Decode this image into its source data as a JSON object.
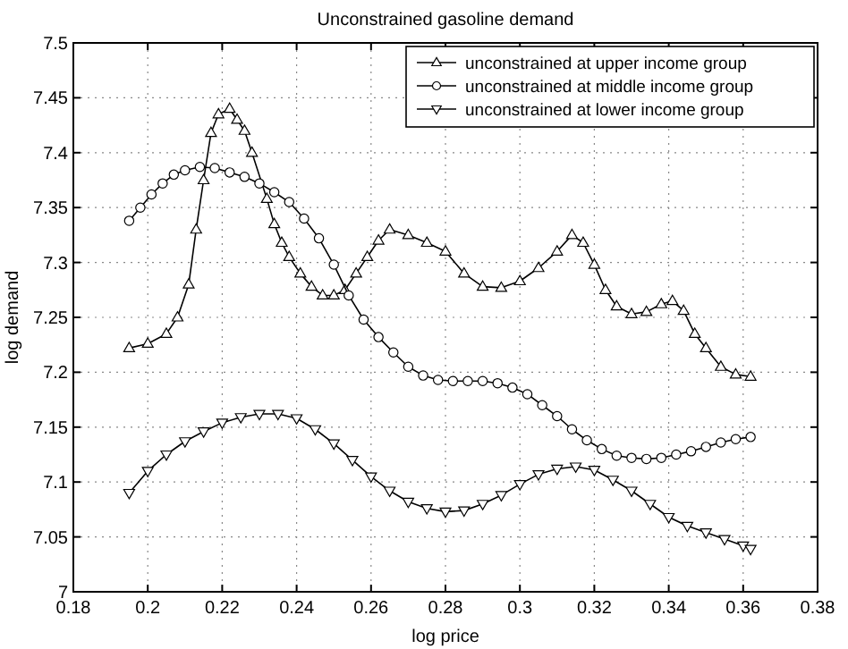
{
  "chart_data": {
    "type": "line",
    "title": "Unconstrained gasoline demand",
    "xlabel": "log price",
    "ylabel": "log demand",
    "xlim": [
      0.18,
      0.38
    ],
    "xticks": [
      0.18,
      0.2,
      0.22,
      0.24,
      0.26,
      0.28,
      0.3,
      0.32,
      0.34,
      0.36,
      0.38
    ],
    "ylim": [
      7,
      7.5
    ],
    "yticks": [
      7,
      7.05,
      7.1,
      7.15,
      7.2,
      7.25,
      7.3,
      7.35,
      7.4,
      7.45,
      7.5
    ],
    "grid": true,
    "legend": "top right",
    "line_style": "solid",
    "series": [
      {
        "name": "unconstrained at upper income group",
        "color": "#000000",
        "marker": "triangle",
        "x": [
          0.195,
          0.2,
          0.205,
          0.208,
          0.211,
          0.213,
          0.215,
          0.217,
          0.219,
          0.222,
          0.224,
          0.226,
          0.228,
          0.232,
          0.234,
          0.236,
          0.238,
          0.241,
          0.244,
          0.247,
          0.25,
          0.253,
          0.256,
          0.259,
          0.262,
          0.265,
          0.27,
          0.275,
          0.28,
          0.285,
          0.29,
          0.295,
          0.3,
          0.305,
          0.31,
          0.314,
          0.317,
          0.32,
          0.323,
          0.326,
          0.33,
          0.334,
          0.338,
          0.341,
          0.344,
          0.347,
          0.35,
          0.354,
          0.358,
          0.362
        ],
        "values": [
          7.222,
          7.226,
          7.235,
          7.25,
          7.28,
          7.33,
          7.375,
          7.418,
          7.435,
          7.44,
          7.43,
          7.42,
          7.4,
          7.358,
          7.335,
          7.318,
          7.305,
          7.29,
          7.278,
          7.27,
          7.27,
          7.275,
          7.29,
          7.305,
          7.32,
          7.33,
          7.325,
          7.318,
          7.31,
          7.29,
          7.278,
          7.277,
          7.283,
          7.295,
          7.31,
          7.325,
          7.318,
          7.298,
          7.275,
          7.26,
          7.253,
          7.255,
          7.262,
          7.265,
          7.256,
          7.235,
          7.222,
          7.205,
          7.198,
          7.196
        ]
      },
      {
        "name": "unconstrained at middle income group",
        "color": "#000000",
        "marker": "circle",
        "x": [
          0.195,
          0.198,
          0.201,
          0.204,
          0.207,
          0.21,
          0.214,
          0.218,
          0.222,
          0.226,
          0.23,
          0.234,
          0.238,
          0.242,
          0.246,
          0.25,
          0.254,
          0.258,
          0.262,
          0.266,
          0.27,
          0.274,
          0.278,
          0.282,
          0.286,
          0.29,
          0.294,
          0.298,
          0.302,
          0.306,
          0.31,
          0.314,
          0.318,
          0.322,
          0.326,
          0.33,
          0.334,
          0.338,
          0.342,
          0.346,
          0.35,
          0.354,
          0.358,
          0.362
        ],
        "values": [
          7.338,
          7.35,
          7.362,
          7.372,
          7.38,
          7.384,
          7.387,
          7.386,
          7.382,
          7.378,
          7.372,
          7.364,
          7.355,
          7.34,
          7.322,
          7.298,
          7.27,
          7.248,
          7.232,
          7.218,
          7.205,
          7.197,
          7.193,
          7.192,
          7.192,
          7.192,
          7.19,
          7.186,
          7.18,
          7.17,
          7.16,
          7.148,
          7.138,
          7.13,
          7.124,
          7.122,
          7.121,
          7.122,
          7.125,
          7.128,
          7.132,
          7.136,
          7.139,
          7.141
        ]
      },
      {
        "name": "unconstrained at lower income group",
        "color": "#000000",
        "marker": "triangle-down",
        "x": [
          0.195,
          0.2,
          0.205,
          0.21,
          0.215,
          0.22,
          0.225,
          0.23,
          0.235,
          0.24,
          0.245,
          0.25,
          0.255,
          0.26,
          0.265,
          0.27,
          0.275,
          0.28,
          0.285,
          0.29,
          0.295,
          0.3,
          0.305,
          0.31,
          0.315,
          0.32,
          0.325,
          0.33,
          0.335,
          0.34,
          0.345,
          0.35,
          0.355,
          0.36,
          0.362
        ],
        "values": [
          7.09,
          7.11,
          7.125,
          7.137,
          7.146,
          7.154,
          7.159,
          7.162,
          7.162,
          7.158,
          7.148,
          7.135,
          7.12,
          7.105,
          7.092,
          7.082,
          7.076,
          7.073,
          7.074,
          7.08,
          7.088,
          7.098,
          7.107,
          7.112,
          7.114,
          7.111,
          7.102,
          7.092,
          7.08,
          7.068,
          7.06,
          7.054,
          7.048,
          7.042,
          7.039
        ]
      }
    ]
  }
}
